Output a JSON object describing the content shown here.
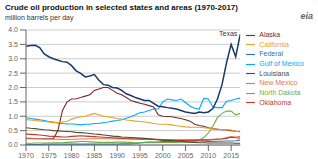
{
  "chart_data": {
    "type": "line",
    "title": "Crude oil production in selected states and areas (1970-2017)",
    "subtitle": "million barrels per day",
    "x": [
      1970,
      1971,
      1972,
      1973,
      1974,
      1975,
      1976,
      1977,
      1978,
      1979,
      1980,
      1981,
      1982,
      1983,
      1984,
      1985,
      1986,
      1987,
      1988,
      1989,
      1990,
      1991,
      1992,
      1993,
      1994,
      1995,
      1996,
      1997,
      1998,
      1999,
      2000,
      2001,
      2002,
      2003,
      2004,
      2005,
      2006,
      2007,
      2008,
      2009,
      2010,
      2011,
      2012,
      2013,
      2014,
      2015,
      2016,
      2017
    ],
    "xlim": [
      1970,
      2017
    ],
    "xticks": [
      1970,
      1975,
      1980,
      1985,
      1990,
      1995,
      2000,
      2005,
      2010,
      2015
    ],
    "ylim": [
      0,
      4.0
    ],
    "yticks": [
      {
        "value": 0.0,
        "label": "0.0"
      },
      0.5,
      {
        "value": 1.0,
        "label": "1.0"
      },
      1.5,
      {
        "value": 2.0,
        "label": "2.0"
      },
      2.5,
      {
        "value": 3.0,
        "label": "3.0"
      },
      3.5,
      {
        "value": 4.0,
        "label": "4.0"
      }
    ],
    "grid": "y",
    "legend": "right",
    "annotations": [
      {
        "text": "Texas",
        "x": 2016.8,
        "y": 3.88
      },
      {
        "text": "eia"
      }
    ],
    "series": [
      {
        "name": "Federal",
        "color": "#2e75b6",
        "values": [
          0.02,
          0.02,
          0.02,
          0.02,
          0.03,
          0.03,
          0.03,
          0.03,
          0.03,
          0.03,
          0.03,
          0.03,
          0.03,
          0.03,
          0.03,
          0.03,
          0.03,
          0.03,
          0.03,
          0.03,
          0.03,
          0.04,
          0.04,
          0.04,
          0.05,
          0.07,
          0.09,
          0.1,
          0.1,
          0.1,
          0.12,
          0.12,
          0.12,
          0.13,
          0.13,
          0.14,
          0.14,
          0.14,
          0.14,
          0.13,
          0.12,
          0.12,
          0.13,
          0.13,
          0.14,
          0.14,
          0.15,
          0.17
        ]
      },
      {
        "name": "Gulf of Mexico",
        "color": "#00aaff",
        "values": [
          0.95,
          0.92,
          0.9,
          0.88,
          0.85,
          0.82,
          0.8,
          0.77,
          0.75,
          0.73,
          0.73,
          0.72,
          0.7,
          0.72,
          0.72,
          0.75,
          0.75,
          0.78,
          0.8,
          0.83,
          0.85,
          0.88,
          0.93,
          0.98,
          1.05,
          1.12,
          1.15,
          1.2,
          1.25,
          1.25,
          1.5,
          1.6,
          1.57,
          1.55,
          1.6,
          1.48,
          1.35,
          1.28,
          1.25,
          1.62,
          1.6,
          1.32,
          1.3,
          1.3,
          1.52,
          1.55,
          1.6,
          1.63
        ]
      },
      {
        "name": "North Dakota",
        "color": "#70ad47",
        "values": [
          0.06,
          0.06,
          0.07,
          0.07,
          0.07,
          0.07,
          0.08,
          0.08,
          0.08,
          0.09,
          0.1,
          0.11,
          0.12,
          0.12,
          0.11,
          0.1,
          0.09,
          0.09,
          0.09,
          0.09,
          0.1,
          0.1,
          0.09,
          0.09,
          0.08,
          0.08,
          0.08,
          0.08,
          0.08,
          0.08,
          0.09,
          0.09,
          0.09,
          0.09,
          0.1,
          0.1,
          0.1,
          0.12,
          0.17,
          0.26,
          0.41,
          0.65,
          0.95,
          1.1,
          1.18,
          1.18,
          1.05,
          1.1
        ]
      },
      {
        "name": "Alaska",
        "color": "#7b2a2a",
        "values": [
          0.23,
          0.23,
          0.22,
          0.22,
          0.22,
          0.22,
          0.22,
          0.5,
          1.2,
          1.5,
          1.6,
          1.61,
          1.65,
          1.7,
          1.75,
          1.9,
          1.95,
          2.0,
          2.0,
          1.9,
          1.8,
          1.75,
          1.65,
          1.55,
          1.5,
          1.45,
          1.42,
          1.37,
          1.32,
          1.05,
          1.0,
          0.99,
          0.98,
          0.95,
          0.92,
          0.88,
          0.83,
          0.72,
          0.68,
          0.65,
          0.6,
          0.57,
          0.55,
          0.53,
          0.52,
          0.5,
          0.48,
          0.47
        ]
      },
      {
        "name": "California",
        "color": "#e8a020",
        "values": [
          0.88,
          0.87,
          0.85,
          0.84,
          0.82,
          0.8,
          0.78,
          0.78,
          0.8,
          0.82,
          0.9,
          0.95,
          0.98,
          1.0,
          1.05,
          1.1,
          1.05,
          1.0,
          0.98,
          0.95,
          0.92,
          0.9,
          0.87,
          0.85,
          0.83,
          0.82,
          0.8,
          0.78,
          0.75,
          0.73,
          0.72,
          0.72,
          0.7,
          0.67,
          0.65,
          0.63,
          0.62,
          0.62,
          0.62,
          0.6,
          0.58,
          0.56,
          0.55,
          0.54,
          0.53,
          0.52,
          0.48,
          0.45
        ]
      },
      {
        "name": "New Mexico",
        "color": "#e8784a",
        "values": [
          0.22,
          0.22,
          0.22,
          0.22,
          0.21,
          0.21,
          0.2,
          0.2,
          0.19,
          0.19,
          0.2,
          0.2,
          0.21,
          0.21,
          0.22,
          0.22,
          0.22,
          0.22,
          0.22,
          0.22,
          0.22,
          0.22,
          0.22,
          0.22,
          0.22,
          0.22,
          0.22,
          0.22,
          0.21,
          0.2,
          0.19,
          0.18,
          0.18,
          0.18,
          0.18,
          0.18,
          0.18,
          0.18,
          0.19,
          0.19,
          0.19,
          0.2,
          0.21,
          0.22,
          0.26,
          0.29,
          0.28,
          0.3
        ]
      },
      {
        "name": "Oklahoma",
        "color": "#c0392b",
        "values": [
          0.38,
          0.37,
          0.36,
          0.35,
          0.33,
          0.31,
          0.3,
          0.29,
          0.28,
          0.28,
          0.3,
          0.31,
          0.32,
          0.31,
          0.3,
          0.29,
          0.28,
          0.27,
          0.26,
          0.25,
          0.24,
          0.23,
          0.22,
          0.21,
          0.21,
          0.2,
          0.2,
          0.2,
          0.19,
          0.18,
          0.17,
          0.17,
          0.17,
          0.16,
          0.16,
          0.16,
          0.16,
          0.17,
          0.17,
          0.17,
          0.17,
          0.18,
          0.2,
          0.21,
          0.23,
          0.27,
          0.25,
          0.24
        ]
      },
      {
        "name": "Louisiana",
        "color": "#4d4d2e",
        "values": [
          0.6,
          0.58,
          0.57,
          0.55,
          0.53,
          0.52,
          0.5,
          0.49,
          0.48,
          0.47,
          0.46,
          0.44,
          0.43,
          0.42,
          0.4,
          0.38,
          0.37,
          0.35,
          0.33,
          0.31,
          0.3,
          0.28,
          0.27,
          0.26,
          0.25,
          0.24,
          0.23,
          0.22,
          0.2,
          0.18,
          0.17,
          0.16,
          0.15,
          0.14,
          0.13,
          0.11,
          0.1,
          0.09,
          0.08,
          0.08,
          0.07,
          0.07,
          0.07,
          0.07,
          0.07,
          0.07,
          0.06,
          0.06
        ]
      },
      {
        "color": "#1a3a6b",
        "values": [
          3.43,
          3.46,
          3.47,
          3.39,
          3.17,
          3.07,
          3.0,
          2.95,
          2.9,
          2.88,
          2.76,
          2.58,
          2.49,
          2.37,
          2.4,
          2.45,
          2.25,
          2.1,
          2.08,
          2.0,
          1.98,
          1.9,
          1.78,
          1.72,
          1.65,
          1.6,
          1.55,
          1.55,
          1.45,
          1.35,
          1.33,
          1.3,
          1.28,
          1.25,
          1.2,
          1.15,
          1.12,
          1.1,
          1.15,
          1.12,
          1.15,
          1.27,
          1.6,
          2.1,
          2.87,
          3.5,
          3.07,
          3.85
        ]
      }
    ]
  }
}
